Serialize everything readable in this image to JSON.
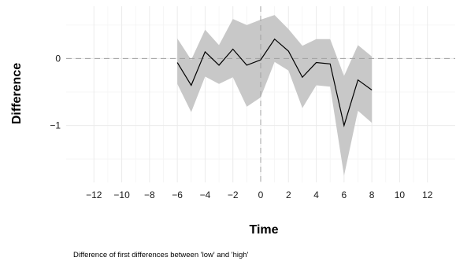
{
  "chart_data": {
    "type": "line",
    "title": "",
    "xlabel": "Time",
    "ylabel": "Difference",
    "caption": "Difference of first differences between 'low' and 'high'",
    "xlim": [
      -14,
      14
    ],
    "ylim": [
      -1.85,
      0.78
    ],
    "x_ticks": [
      -12,
      -10,
      -8,
      -6,
      -4,
      -2,
      0,
      2,
      4,
      6,
      8,
      10,
      12
    ],
    "x_tick_labels": [
      "−12",
      "−10",
      "−8",
      "−6",
      "−4",
      "−2",
      "0",
      "2",
      "4",
      "6",
      "8",
      "10",
      "12"
    ],
    "y_ticks": [
      0,
      -1
    ],
    "y_tick_labels": [
      "0",
      "−1"
    ],
    "grid": true,
    "reference_lines": {
      "h": 0,
      "v": 0
    },
    "series": [
      {
        "x": [
          -6,
          -5,
          -4,
          -3,
          -2,
          -1,
          0,
          1,
          2,
          3,
          4,
          5,
          6,
          7,
          8
        ],
        "y": [
          -0.06,
          -0.4,
          0.1,
          -0.1,
          0.14,
          -0.1,
          -0.02,
          0.29,
          0.11,
          -0.28,
          -0.06,
          -0.08,
          -1.0,
          -0.32,
          -0.47
        ],
        "lower": [
          -0.38,
          -0.8,
          -0.27,
          -0.38,
          -0.28,
          -0.72,
          -0.58,
          -0.05,
          -0.18,
          -0.74,
          -0.4,
          -0.42,
          -1.75,
          -0.78,
          -0.96
        ],
        "upper": [
          0.3,
          -0.02,
          0.43,
          0.2,
          0.59,
          0.5,
          0.58,
          0.65,
          0.44,
          0.19,
          0.29,
          0.29,
          -0.26,
          0.2,
          0.03
        ],
        "color": "#000000",
        "ribbon_color": "#c8c8c8"
      }
    ],
    "colors": {
      "background": "#ffffff",
      "grid": "#ebebeb",
      "reference_line": "#a0a0a0"
    }
  }
}
